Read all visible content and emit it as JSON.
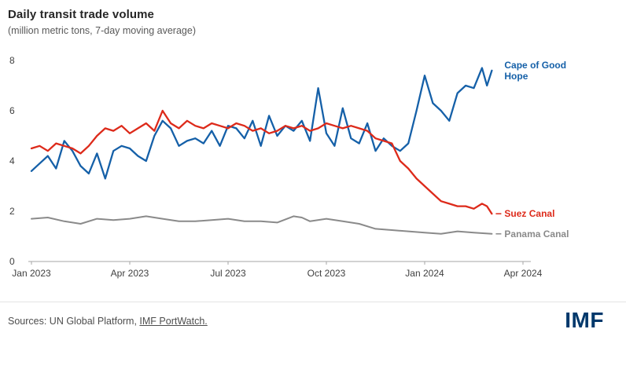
{
  "header": {
    "title": "Daily transit trade volume",
    "subtitle": "(million metric tons, 7-day moving average)"
  },
  "footer": {
    "sources_prefix": "Sources: UN Global Platform, ",
    "sources_link": "IMF PortWatch.",
    "logo": "IMF",
    "logo_color": "#00386b"
  },
  "chart_data": {
    "type": "line",
    "title": "Daily transit trade volume",
    "subtitle": "(million metric tons, 7-day moving average)",
    "x_unit": "months since Jan 2023",
    "xlim": [
      0,
      15
    ],
    "ylim": [
      0,
      8
    ],
    "yticks": [
      0,
      2,
      4,
      6,
      8
    ],
    "xticks": [
      {
        "pos": 0,
        "label": "Jan 2023"
      },
      {
        "pos": 3,
        "label": "Apr 2023"
      },
      {
        "pos": 6,
        "label": "Jul 2023"
      },
      {
        "pos": 9,
        "label": "Oct 2023"
      },
      {
        "pos": 12,
        "label": "Jan 2024"
      },
      {
        "pos": 15,
        "label": "Apr 2024"
      }
    ],
    "axis_color": "#a6a6a6",
    "grid": false,
    "legend_position": "right-of-line-ends",
    "series": [
      {
        "name": "Cape of Good Hope",
        "color": "#1560a8",
        "width": 2.3,
        "label_lines": [
          "Cape of Good",
          "Hope"
        ],
        "label_dash": false,
        "x": [
          0,
          0.25,
          0.5,
          0.75,
          1,
          1.25,
          1.5,
          1.75,
          2,
          2.25,
          2.5,
          2.75,
          3,
          3.25,
          3.5,
          3.75,
          4,
          4.25,
          4.5,
          4.75,
          5,
          5.25,
          5.5,
          5.75,
          6,
          6.25,
          6.5,
          6.75,
          7,
          7.25,
          7.5,
          7.75,
          8,
          8.25,
          8.5,
          8.75,
          9,
          9.25,
          9.5,
          9.75,
          10,
          10.25,
          10.5,
          10.75,
          11,
          11.25,
          11.5,
          11.75,
          12,
          12.25,
          12.5,
          12.75,
          13,
          13.25,
          13.5,
          13.75,
          13.9,
          14.05
        ],
        "y": [
          3.6,
          3.9,
          4.2,
          3.7,
          4.8,
          4.4,
          3.8,
          3.5,
          4.3,
          3.3,
          4.4,
          4.6,
          4.5,
          4.2,
          4.0,
          5.0,
          5.6,
          5.3,
          4.6,
          4.8,
          4.9,
          4.7,
          5.2,
          4.6,
          5.4,
          5.3,
          4.9,
          5.6,
          4.6,
          5.8,
          5.0,
          5.4,
          5.2,
          5.6,
          4.8,
          6.9,
          5.1,
          4.6,
          6.1,
          4.9,
          4.7,
          5.5,
          4.4,
          4.9,
          4.6,
          4.4,
          4.7,
          6.0,
          7.4,
          6.3,
          6.0,
          5.6,
          6.7,
          7.0,
          6.9,
          7.7,
          7.0,
          7.6
        ]
      },
      {
        "name": "Suez Canal",
        "color": "#dd2a1a",
        "width": 2.3,
        "label_lines": [
          "Suez Canal"
        ],
        "label_dash": true,
        "x": [
          0,
          0.25,
          0.5,
          0.75,
          1,
          1.25,
          1.5,
          1.75,
          2,
          2.25,
          2.5,
          2.75,
          3,
          3.25,
          3.5,
          3.75,
          4,
          4.25,
          4.5,
          4.75,
          5,
          5.25,
          5.5,
          5.75,
          6,
          6.25,
          6.5,
          6.75,
          7,
          7.25,
          7.5,
          7.75,
          8,
          8.25,
          8.5,
          8.75,
          9,
          9.25,
          9.5,
          9.75,
          10,
          10.25,
          10.5,
          10.75,
          11,
          11.25,
          11.5,
          11.75,
          12,
          12.25,
          12.5,
          12.75,
          13,
          13.25,
          13.5,
          13.75,
          13.9,
          14.05
        ],
        "y": [
          4.5,
          4.6,
          4.4,
          4.7,
          4.6,
          4.5,
          4.3,
          4.6,
          5.0,
          5.3,
          5.2,
          5.4,
          5.1,
          5.3,
          5.5,
          5.2,
          6.0,
          5.5,
          5.3,
          5.6,
          5.4,
          5.3,
          5.5,
          5.4,
          5.3,
          5.5,
          5.4,
          5.2,
          5.3,
          5.1,
          5.2,
          5.4,
          5.3,
          5.4,
          5.2,
          5.3,
          5.5,
          5.4,
          5.3,
          5.4,
          5.3,
          5.2,
          4.9,
          4.8,
          4.7,
          4.0,
          3.7,
          3.3,
          3.0,
          2.7,
          2.4,
          2.3,
          2.2,
          2.2,
          2.1,
          2.3,
          2.2,
          1.9
        ]
      },
      {
        "name": "Panama Canal",
        "color": "#8a8a8a",
        "width": 2.0,
        "label_lines": [
          "Panama Canal"
        ],
        "label_dash": true,
        "x": [
          0,
          0.5,
          1,
          1.5,
          2,
          2.5,
          3,
          3.5,
          4,
          4.5,
          5,
          5.5,
          6,
          6.5,
          7,
          7.5,
          8,
          8.25,
          8.5,
          9,
          9.5,
          10,
          10.5,
          11,
          11.5,
          12,
          12.5,
          13,
          13.5,
          14.05
        ],
        "y": [
          1.7,
          1.75,
          1.6,
          1.5,
          1.7,
          1.65,
          1.7,
          1.8,
          1.7,
          1.6,
          1.6,
          1.65,
          1.7,
          1.6,
          1.6,
          1.55,
          1.8,
          1.75,
          1.6,
          1.7,
          1.6,
          1.5,
          1.3,
          1.25,
          1.2,
          1.15,
          1.1,
          1.2,
          1.15,
          1.1
        ]
      }
    ]
  }
}
